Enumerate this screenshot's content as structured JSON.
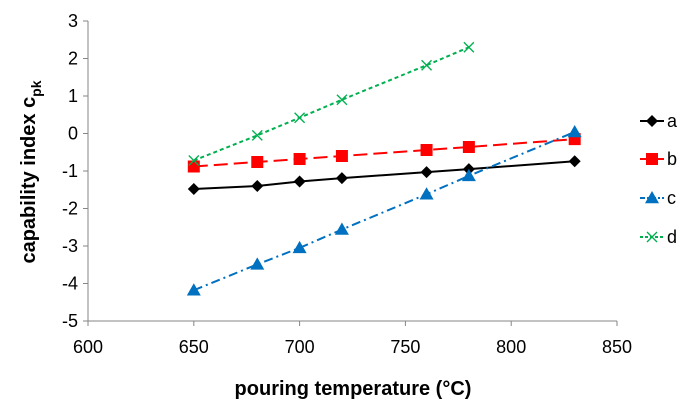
{
  "chart_data": {
    "type": "line",
    "xlabel": "pouring temperature (°C)",
    "ylabel_main": "capability index c",
    "ylabel_sub": "pk",
    "xlim": [
      600,
      850
    ],
    "ylim": [
      -5,
      3
    ],
    "xticks": [
      600,
      650,
      700,
      750,
      800,
      850
    ],
    "yticks": [
      -5,
      -4,
      -3,
      -2,
      -1,
      0,
      1,
      2,
      3
    ],
    "grid": false,
    "legend_position": "right",
    "series": [
      {
        "name": "a",
        "color": "#000000",
        "marker": "diamond",
        "dash": "solid",
        "x": [
          650,
          680,
          700,
          720,
          760,
          780,
          830
        ],
        "y": [
          -1.48,
          -1.4,
          -1.28,
          -1.19,
          -1.03,
          -0.95,
          -0.74
        ]
      },
      {
        "name": "b",
        "color": "#ff0000",
        "marker": "square",
        "dash": "long-dash",
        "x": [
          650,
          680,
          700,
          720,
          760,
          780,
          830
        ],
        "y": [
          -0.88,
          -0.76,
          -0.68,
          -0.6,
          -0.44,
          -0.36,
          -0.15
        ]
      },
      {
        "name": "c",
        "color": "#0070c0",
        "marker": "triangle",
        "dash": "dash-dot",
        "x": [
          650,
          680,
          700,
          720,
          760,
          780,
          830
        ],
        "y": [
          -4.18,
          -3.49,
          -3.05,
          -2.56,
          -1.62,
          -1.13,
          0.04
        ]
      },
      {
        "name": "d",
        "color": "#00b050",
        "marker": "x",
        "dash": "dotted",
        "x": [
          650,
          680,
          700,
          720,
          760,
          780
        ],
        "y": [
          -0.72,
          -0.05,
          0.42,
          0.9,
          1.82,
          2.3
        ]
      }
    ]
  }
}
